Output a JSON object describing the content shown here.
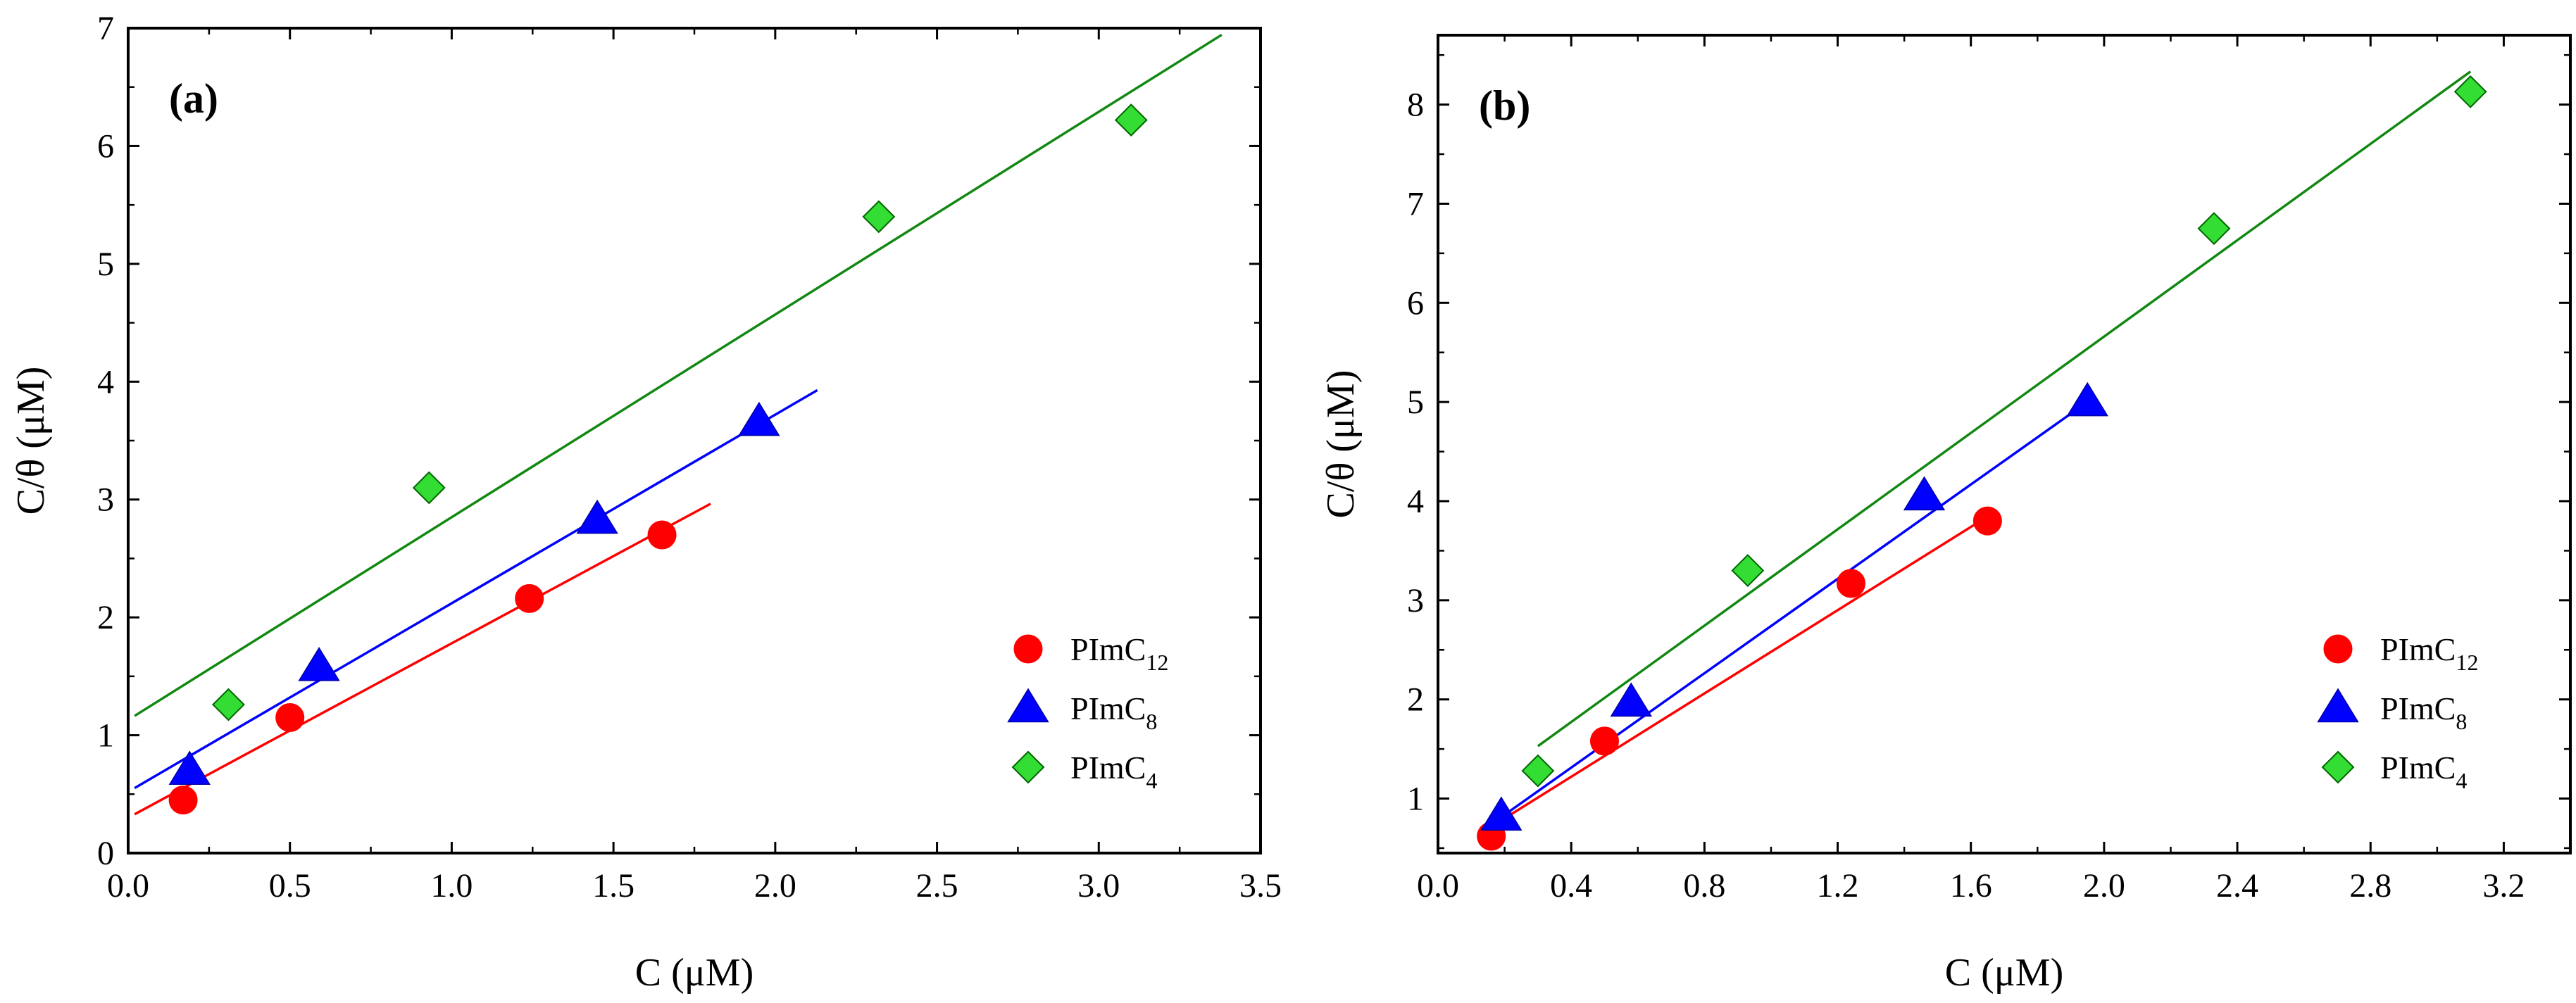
{
  "chart_data": [
    {
      "type": "scatter",
      "panel_label": "(a)",
      "xlabel": "C  (μM)",
      "ylabel": "C/θ  (μM)",
      "xlim": [
        0.0,
        3.5
      ],
      "ylim": [
        0,
        7
      ],
      "xticks": [
        "0.0",
        "0.5",
        "1.0",
        "1.5",
        "2.0",
        "2.5",
        "3.0",
        "3.5"
      ],
      "yticks": [
        "0",
        "1",
        "2",
        "3",
        "4",
        "5",
        "6",
        "7"
      ],
      "grid": false,
      "legend_position": "bottom-right",
      "series": [
        {
          "name": "PImC12",
          "legend_main": "PImC",
          "legend_sub": "12",
          "marker": "circle",
          "color": "#ff0000",
          "x": [
            0.17,
            0.5,
            1.24,
            1.65
          ],
          "y": [
            0.45,
            1.15,
            2.16,
            2.7
          ],
          "fit": {
            "x0": 0.02,
            "x1": 1.8,
            "slope": 1.48,
            "intercept": 0.3
          }
        },
        {
          "name": "PImC8",
          "legend_main": "PImC",
          "legend_sub": "8",
          "marker": "triangle",
          "color": "#0000ff",
          "x": [
            0.19,
            0.59,
            1.45,
            1.95
          ],
          "y": [
            0.7,
            1.58,
            2.83,
            3.66
          ],
          "fit": {
            "x0": 0.02,
            "x1": 2.13,
            "slope": 1.6,
            "intercept": 0.52
          }
        },
        {
          "name": "PImC4",
          "legend_main": "PImC",
          "legend_sub": "4",
          "marker": "diamond",
          "color": "#33dd33",
          "x": [
            0.31,
            0.93,
            2.32,
            3.1
          ],
          "y": [
            1.26,
            3.1,
            5.4,
            6.22
          ],
          "fit": {
            "x0": 0.02,
            "x1": 3.38,
            "slope": 1.72,
            "intercept": 1.13
          }
        }
      ]
    },
    {
      "type": "scatter",
      "panel_label": "(b)",
      "xlabel": "C  (μM)",
      "ylabel": "C/θ  (μM)",
      "xlim": [
        0.0,
        3.4
      ],
      "ylim": [
        0.45,
        8.7
      ],
      "xticks": [
        "0.0",
        "0.4",
        "0.8",
        "1.2",
        "1.6",
        "2.0",
        "2.4",
        "2.8",
        "3.2"
      ],
      "yticks": [
        "1",
        "2",
        "3",
        "4",
        "5",
        "6",
        "7",
        "8"
      ],
      "grid": false,
      "legend_position": "bottom-right",
      "series": [
        {
          "name": "PImC12",
          "legend_main": "PImC",
          "legend_sub": "12",
          "marker": "circle",
          "color": "#ff0000",
          "x": [
            0.16,
            0.5,
            1.24,
            1.65
          ],
          "y": [
            0.62,
            1.58,
            3.17,
            3.8
          ],
          "fit": {
            "x0": 0.16,
            "x1": 1.65,
            "slope": 2.1,
            "intercept": 0.38
          }
        },
        {
          "name": "PImC8",
          "legend_main": "PImC",
          "legend_sub": "8",
          "marker": "triangle",
          "color": "#0000ff",
          "x": [
            0.19,
            0.58,
            1.46,
            1.95
          ],
          "y": [
            0.82,
            1.97,
            4.05,
            5.0
          ],
          "fit": {
            "x0": 0.17,
            "x1": 1.95,
            "slope": 2.38,
            "intercept": 0.36
          }
        },
        {
          "name": "PImC4",
          "legend_main": "PImC",
          "legend_sub": "4",
          "marker": "diamond",
          "color": "#33dd33",
          "x": [
            0.3,
            0.93,
            2.33,
            3.1
          ],
          "y": [
            1.28,
            3.3,
            6.75,
            8.13
          ],
          "fit": {
            "x0": 0.3,
            "x1": 3.1,
            "slope": 2.43,
            "intercept": 0.8
          }
        }
      ]
    }
  ],
  "colors": {
    "fit_red": "#ff0000",
    "fit_blue": "#0000ff",
    "fit_green": "#118811",
    "marker_red": "#ff0000",
    "marker_blue": "#0000ff",
    "marker_green": "#33dd33"
  }
}
